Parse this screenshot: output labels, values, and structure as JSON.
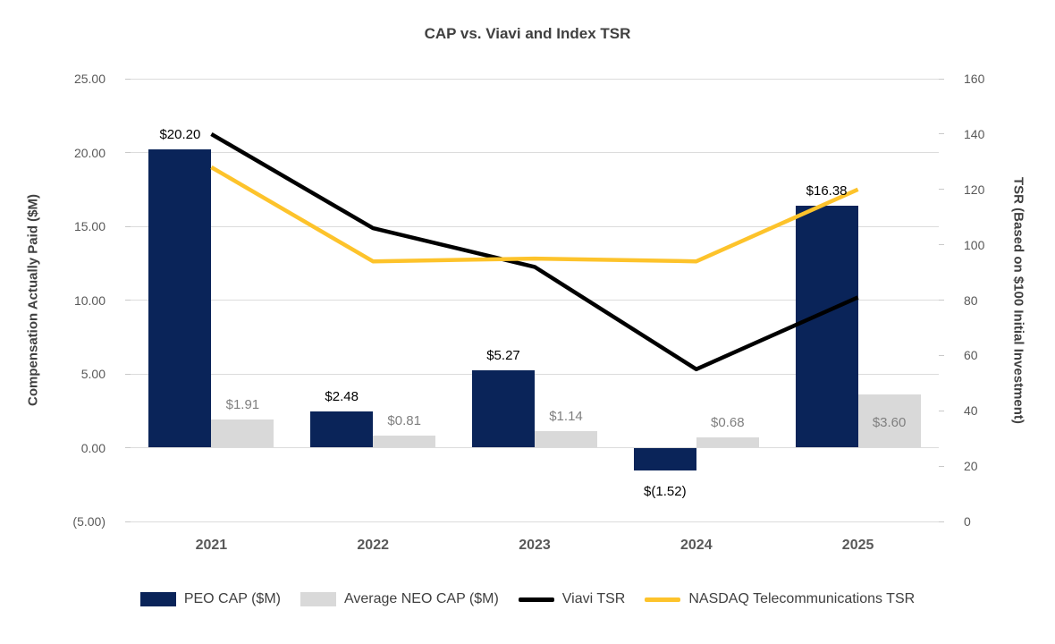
{
  "chart": {
    "title": "CAP vs. Viavi and Index TSR",
    "left_axis_title": "Compensation Actually Paid ($M)",
    "right_axis_title": "TSR (Based on $100 Initial Investment)"
  },
  "colors": {
    "peo_bar": "#0A2459",
    "neo_bar": "#D9D9D9",
    "viavi_line": "#000000",
    "nasdaq_line": "#FDC32B",
    "peo_label": "#000000",
    "neo_label": "#7F7F7F",
    "gridline": "#DCDCDC",
    "tick_text": "#595959",
    "title_text": "#404040"
  },
  "chart_data": {
    "type": "bar",
    "subtype": "combo bar + line, dual axis",
    "title": "CAP vs. Viavi and Index TSR",
    "categories": [
      "2021",
      "2022",
      "2023",
      "2024",
      "2025"
    ],
    "series": [
      {
        "name": "PEO CAP ($M)",
        "kind": "bar",
        "axis": "left",
        "color": "#0A2459",
        "values": [
          20.2,
          2.48,
          5.27,
          -1.52,
          16.38
        ],
        "labels": [
          "$20.20",
          "$2.48",
          "$5.27",
          "$(1.52)",
          "$16.38"
        ],
        "label_color": "#000000",
        "label_inside": [
          false,
          false,
          false,
          false,
          false
        ]
      },
      {
        "name": "Average NEO CAP ($M)",
        "kind": "bar",
        "axis": "left",
        "color": "#D9D9D9",
        "values": [
          1.91,
          0.81,
          1.14,
          0.68,
          3.6
        ],
        "labels": [
          "$1.91",
          "$0.81",
          "$1.14",
          "$0.68",
          "$3.60"
        ],
        "label_color": "#7F7F7F",
        "label_inside": [
          false,
          false,
          false,
          false,
          true
        ]
      },
      {
        "name": "Viavi TSR",
        "kind": "line",
        "axis": "right",
        "color": "#000000",
        "values": [
          140,
          106,
          92,
          55,
          81
        ]
      },
      {
        "name": "NASDAQ Telecommunications TSR",
        "kind": "line",
        "axis": "right",
        "color": "#FDC32B",
        "values": [
          128,
          94,
          95,
          94,
          120
        ]
      }
    ],
    "left_axis": {
      "label": "Compensation Actually Paid ($M)",
      "min": -5,
      "max": 25,
      "step": 5,
      "tick_labels": [
        "25.00",
        "20.00",
        "15.00",
        "10.00",
        "5.00",
        "0.00",
        "(5.00)"
      ]
    },
    "right_axis": {
      "label": "TSR (Based on $100 Initial Investment)",
      "min": 0,
      "max": 160,
      "step": 20,
      "tick_labels": [
        "160",
        "140",
        "120",
        "100",
        "80",
        "60",
        "40",
        "20",
        "0"
      ]
    },
    "grid": true,
    "legend_position": "bottom"
  }
}
